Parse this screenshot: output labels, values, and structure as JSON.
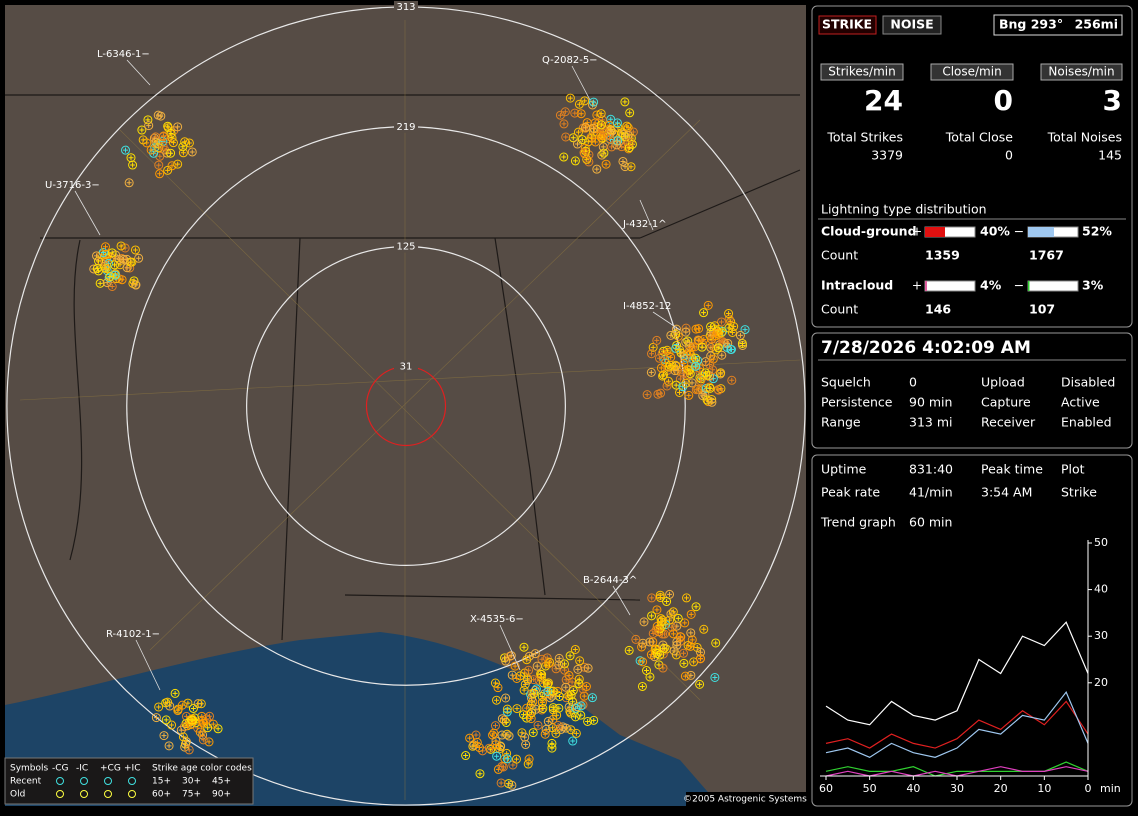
{
  "map": {
    "range_rings": [
      313,
      219,
      125,
      31
    ],
    "clusters": [
      "L-6346-1−",
      "Q-2082-5−",
      "U-3716-3−",
      "J-432-1^",
      "I-4852-12",
      "B-2644-3^",
      "X-4535-6−",
      "R-4102-1−"
    ],
    "copyright": "©2005 Astrogenic Systems",
    "legend": {
      "symbols": "Symbols",
      "types": [
        "-CG",
        "-IC",
        "+CG",
        "+IC"
      ],
      "age_title": "Strike age color codes",
      "recent": "Recent",
      "old": "Old",
      "recent_ages": [
        "15+",
        "30+",
        "45+"
      ],
      "old_ages": [
        "60+",
        "75+",
        "90+"
      ]
    }
  },
  "panel": {
    "strike_button": "STRIKE",
    "noise_button": "NOISE",
    "bearing": "Bng 293°",
    "distance": "256mi",
    "rates": [
      {
        "label": "Strikes/min",
        "value": "24",
        "total_label": "Total Strikes",
        "total": "3379"
      },
      {
        "label": "Close/min",
        "value": "0",
        "total_label": "Total Close",
        "total": "0"
      },
      {
        "label": "Noises/min",
        "value": "3",
        "total_label": "Total Noises",
        "total": "145"
      }
    ],
    "distribution": {
      "title": "Lightning type distribution",
      "count_label": "Count",
      "rows": [
        {
          "name": "Cloud-ground",
          "plus_sign": "+",
          "minus_sign": "−",
          "plus": {
            "value": 40,
            "label": "40%"
          },
          "minus": {
            "value": 52,
            "label": "52%"
          },
          "plus_count": "1359",
          "minus_count": "1767"
        },
        {
          "name": "Intracloud",
          "plus_sign": "+",
          "minus_sign": "−",
          "plus": {
            "value": 4,
            "label": "4%"
          },
          "minus": {
            "value": 3,
            "label": "3%"
          },
          "plus_count": "146",
          "minus_count": "107"
        }
      ]
    },
    "datetime": "7/28/2026 4:02:09 AM",
    "settings": [
      [
        "Squelch",
        "0",
        "Upload",
        "Disabled"
      ],
      [
        "Persistence",
        "90 min",
        "Capture",
        "Active"
      ],
      [
        "Range",
        "313 mi",
        "Receiver",
        "Enabled"
      ]
    ],
    "stats": [
      [
        "Uptime",
        "831:40",
        "Peak time",
        "Plot"
      ],
      [
        "Peak rate",
        "41/min",
        "3:54 AM",
        "Strike"
      ]
    ],
    "trend_label": "Trend graph",
    "trend_value": "60 min"
  },
  "chart_data": {
    "type": "line",
    "x": [
      60,
      55,
      50,
      45,
      40,
      35,
      30,
      25,
      20,
      15,
      10,
      5,
      0
    ],
    "x_unit": "min",
    "xlim": [
      60,
      0
    ],
    "xticks": [
      60,
      50,
      40,
      30,
      20,
      10,
      0
    ],
    "ylim": [
      0,
      50
    ],
    "yticks": [
      20,
      30,
      40,
      50
    ],
    "series": [
      {
        "color": "#ffffff",
        "values": [
          15,
          12,
          11,
          16,
          13,
          12,
          14,
          25,
          22,
          30,
          28,
          33,
          22
        ]
      },
      {
        "color": "#e02020",
        "values": [
          7,
          8,
          6,
          9,
          7,
          6,
          8,
          12,
          10,
          14,
          11,
          16,
          9
        ]
      },
      {
        "color": "#9fc8f0",
        "values": [
          5,
          6,
          4,
          7,
          5,
          4,
          6,
          10,
          9,
          13,
          12,
          18,
          7
        ]
      },
      {
        "color": "#30d030",
        "values": [
          1,
          2,
          1,
          1,
          2,
          0,
          1,
          1,
          1,
          1,
          1,
          3,
          1
        ]
      },
      {
        "color": "#e040c0",
        "values": [
          0,
          1,
          0,
          1,
          0,
          1,
          0,
          1,
          2,
          1,
          1,
          2,
          1
        ]
      }
    ]
  }
}
